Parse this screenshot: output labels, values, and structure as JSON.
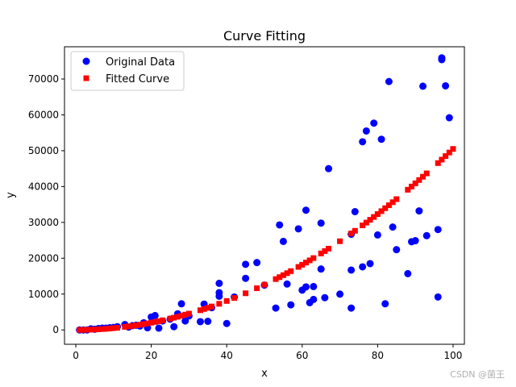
{
  "chart_data": {
    "type": "scatter",
    "title": "Curve Fitting",
    "xlabel": "x",
    "ylabel": "y",
    "xlim": [
      -3,
      103
    ],
    "ylim": [
      -4000,
      79000
    ],
    "xticks": [
      0,
      20,
      40,
      60,
      80,
      100
    ],
    "yticks": [
      0,
      10000,
      20000,
      30000,
      40000,
      50000,
      60000,
      70000
    ],
    "legend_position": "top-left",
    "fit": {
      "model": "y = a*x^2",
      "a": 5.05
    },
    "series": [
      {
        "name": "Original Data",
        "color": "#0000ff",
        "marker": "circle",
        "points": [
          [
            1,
            0
          ],
          [
            2,
            0
          ],
          [
            3,
            0
          ],
          [
            4,
            300
          ],
          [
            5,
            200
          ],
          [
            6,
            400
          ],
          [
            7,
            500
          ],
          [
            8,
            500
          ],
          [
            9,
            600
          ],
          [
            10,
            700
          ],
          [
            11,
            900
          ],
          [
            13,
            1500
          ],
          [
            14,
            800
          ],
          [
            15,
            1200
          ],
          [
            16,
            1300
          ],
          [
            17,
            1100
          ],
          [
            18,
            2000
          ],
          [
            19,
            600
          ],
          [
            20,
            3600
          ],
          [
            21,
            4000
          ],
          [
            22,
            500
          ],
          [
            23,
            2500
          ],
          [
            25,
            3000
          ],
          [
            26,
            900
          ],
          [
            27,
            4500
          ],
          [
            28,
            7300
          ],
          [
            29,
            2500
          ],
          [
            30,
            3900
          ],
          [
            33,
            2300
          ],
          [
            34,
            7200
          ],
          [
            35,
            2400
          ],
          [
            36,
            6200
          ],
          [
            38,
            13000
          ],
          [
            38,
            10400
          ],
          [
            38,
            9400
          ],
          [
            40,
            1800
          ],
          [
            42,
            9200
          ],
          [
            45,
            18300
          ],
          [
            45,
            14400
          ],
          [
            48,
            18800
          ],
          [
            50,
            12500
          ],
          [
            53,
            6100
          ],
          [
            54,
            29300
          ],
          [
            55,
            24700
          ],
          [
            56,
            12800
          ],
          [
            57,
            7000
          ],
          [
            59,
            28200
          ],
          [
            60,
            11100
          ],
          [
            61,
            33400
          ],
          [
            61,
            12000
          ],
          [
            62,
            7600
          ],
          [
            63,
            12100
          ],
          [
            63,
            8500
          ],
          [
            65,
            29800
          ],
          [
            65,
            17000
          ],
          [
            66,
            9000
          ],
          [
            67,
            45000
          ],
          [
            70,
            10000
          ],
          [
            73,
            26700
          ],
          [
            73,
            6100
          ],
          [
            73,
            16700
          ],
          [
            74,
            33000
          ],
          [
            76,
            52500
          ],
          [
            76,
            17600
          ],
          [
            77,
            55500
          ],
          [
            78,
            18500
          ],
          [
            79,
            57700
          ],
          [
            80,
            26500
          ],
          [
            81,
            53200
          ],
          [
            82,
            7300
          ],
          [
            83,
            69300
          ],
          [
            84,
            28700
          ],
          [
            85,
            22400
          ],
          [
            88,
            15700
          ],
          [
            89,
            24600
          ],
          [
            90,
            24900
          ],
          [
            91,
            33200
          ],
          [
            92,
            68000
          ],
          [
            93,
            26300
          ],
          [
            96,
            9200
          ],
          [
            96,
            28000
          ],
          [
            97,
            75400
          ],
          [
            97,
            75900
          ],
          [
            98,
            68100
          ],
          [
            99,
            59200
          ]
        ]
      },
      {
        "name": "Fitted Curve",
        "color": "#ff0000",
        "marker": "square",
        "x": [
          1,
          2,
          3,
          4,
          5,
          6,
          7,
          8,
          9,
          10,
          11,
          13,
          14,
          15,
          16,
          17,
          18,
          19,
          20,
          21,
          22,
          23,
          25,
          26,
          27,
          28,
          29,
          30,
          33,
          34,
          35,
          36,
          38,
          40,
          42,
          45,
          48,
          50,
          53,
          54,
          55,
          56,
          57,
          59,
          60,
          61,
          62,
          63,
          65,
          66,
          67,
          70,
          73,
          74,
          76,
          77,
          78,
          79,
          80,
          81,
          82,
          83,
          84,
          85,
          88,
          89,
          90,
          91,
          92,
          93,
          96,
          97,
          98,
          99,
          100
        ]
      }
    ]
  },
  "watermark": "CSDN @菌王"
}
